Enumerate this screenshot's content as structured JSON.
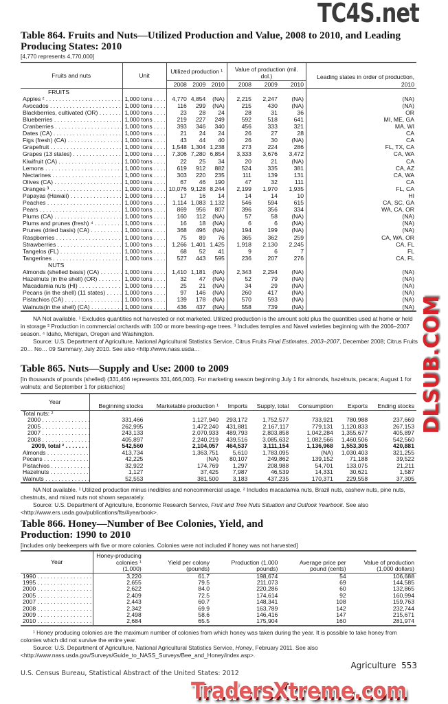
{
  "watermarks": {
    "top": "TC4S.net",
    "middle": "DLSUB.COM",
    "bottom": "TradersXtreme.com"
  },
  "t864": {
    "title": "Table 864. Fruits and Nuts—Utilized Production and Value, 2008 to 2010, and Leading Producing States: 2010",
    "headnote": "[4,770 represents 4,770,000]",
    "headers": {
      "name": "Fruits and nuts",
      "unit": "Unit",
      "prod": "Utilized production ¹",
      "value": "Value of production (mil. dol.)",
      "states": "Leading states in order of production, 2010",
      "years": [
        "2008",
        "2009",
        "2010"
      ]
    },
    "sections": [
      {
        "label": "FRUITS",
        "rows": [
          [
            "Apples ²",
            "1,000 tons",
            "4,770",
            "4,854",
            "(NA)",
            "2,215",
            "2,247",
            "(NA)",
            "(NA)"
          ],
          [
            "Avocados",
            "1,000 tons",
            "116",
            "299",
            "(NA)",
            "215",
            "430",
            "(NA)",
            "(NA)"
          ],
          [
            "Blackberries, cultivated (OR)",
            "1,000 tons",
            "23",
            "28",
            "24",
            "28",
            "31",
            "36",
            "OR"
          ],
          [
            "Blueberries",
            "1,000 tons",
            "219",
            "227",
            "249",
            "592",
            "518",
            "641",
            "MI, ME, GA"
          ],
          [
            "Cranberries",
            "1,000 tons",
            "393",
            "346",
            "340",
            "456",
            "333",
            "321",
            "MA, WI"
          ],
          [
            "Dates (CA)",
            "1,000 tons",
            "21",
            "24",
            "24",
            "26",
            "27",
            "28",
            "CA"
          ],
          [
            "Figs (fresh) (CA)",
            "1,000 tons",
            "43",
            "44",
            "40",
            "26",
            "30",
            "(NA)",
            "CA"
          ],
          [
            "Grapefruit",
            "1,000 tons",
            "1,548",
            "1,304",
            "1,238",
            "273",
            "224",
            "286",
            "FL, TX, CA"
          ],
          [
            "Grapes (13 states)",
            "1,000 tons",
            "7,306",
            "7,280",
            "6,854",
            "3,333",
            "3,676",
            "3,472",
            "CA, WA"
          ],
          [
            "Kiwifruit (CA)",
            "1,000 tons",
            "22",
            "25",
            "34",
            "20",
            "21",
            "(NA)",
            "CA"
          ],
          [
            "Lemons",
            "1,000 tons",
            "619",
            "912",
            "882",
            "524",
            "335",
            "381",
            "CA, AZ"
          ],
          [
            "Nectarines",
            "1,000 tons",
            "303",
            "220",
            "235",
            "111",
            "139",
            "131",
            "CA, WA"
          ],
          [
            "Olives (CA)",
            "1,000 tons",
            "67",
            "46",
            "190",
            "47",
            "32",
            "111",
            "CA"
          ],
          [
            "Oranges ³",
            "1,000 tons",
            "10,076",
            "9,128",
            "8,244",
            "2,199",
            "1,970",
            "1,935",
            "FL, CA"
          ],
          [
            "Papayas (Hawaii)",
            "1,000 tons",
            "17",
            "16",
            "14",
            "14",
            "14",
            "10",
            "HI"
          ],
          [
            "Peaches",
            "1,000 tons",
            "1,114",
            "1,083",
            "1,132",
            "546",
            "594",
            "615",
            "CA, SC, GA"
          ],
          [
            "Pears",
            "1,000 tons",
            "869",
            "956",
            "807",
            "396",
            "356",
            "334",
            "WA, CA, OR"
          ],
          [
            "Plums (CA)",
            "1,000 tons",
            "160",
            "112",
            "(NA)",
            "57",
            "58",
            "(NA)",
            "(NA)"
          ],
          [
            "Plums and prunes (fresh) ⁴",
            "1,000 tons",
            "16",
            "18",
            "(NA)",
            "6",
            "6",
            "(NA)",
            "(NA)"
          ],
          [
            "Prunes (dried basis) (CA)",
            "1,000 tons",
            "368",
            "496",
            "(NA)",
            "194",
            "199",
            "(NA)",
            "(NA)"
          ],
          [
            "Raspberries",
            "1,000 tons",
            "75",
            "89",
            "76",
            "365",
            "362",
            "259",
            "CA, WA, OR"
          ],
          [
            "Strawberries",
            "1,000 tons",
            "1,266",
            "1,401",
            "1,425",
            "1,918",
            "2,130",
            "2,245",
            "CA, FL"
          ],
          [
            "Tangelos (FL)",
            "1,000 tons",
            "68",
            "52",
            "41",
            "9",
            "6",
            "7",
            "FL"
          ],
          [
            "Tangerines",
            "1,000 tons",
            "527",
            "443",
            "595",
            "236",
            "207",
            "276",
            "CA, FL"
          ]
        ]
      },
      {
        "label": "NUTS",
        "rows": [
          [
            "Almonds (shelled basis) (CA)",
            "1,000 tons",
            "1,410",
            "1,181",
            "(NA)",
            "2,343",
            "2,294",
            "(NA)",
            "(NA)"
          ],
          [
            "Hazelnuts (in the shell) (OR)",
            "1,000 tons",
            "32",
            "47",
            "(NA)",
            "52",
            "79",
            "(NA)",
            "(NA)"
          ],
          [
            "Macadamia nuts (HI)",
            "1,000 tons",
            "25",
            "21",
            "(NA)",
            "34",
            "29",
            "(NA)",
            "(NA)"
          ],
          [
            "Pecans (in the shell) (11 states)",
            "1,000 tons",
            "97",
            "146",
            "(NA)",
            "260",
            "417",
            "(NA)",
            "(NA)"
          ],
          [
            "Pistachios (CA)",
            "1,000 tons",
            "139",
            "178",
            "(NA)",
            "570",
            "593",
            "(NA)",
            "(NA)"
          ],
          [
            "Walnuts(in the shell) (CA)",
            "1,000 tons",
            "436",
            "437",
            "(NA)",
            "558",
            "739",
            "(NA)",
            "(NA)"
          ]
        ]
      }
    ],
    "footnote": "NA Not available. ¹ Excludes quantities not harvested or not marketed. Utilized production is the amount sold plus the quantities used at home or held in storage ² Production in commercial orchards with 100 or more bearing-age trees. ³ Includes temples and Navel varieties beginning with the 2006–2007 season. ⁴ Idaho, Michigan, Oregon and Washington.",
    "source_a": "Source: U.S. Department of Agriculture, National Agricultural Statistics Service, Citrus Fruits ",
    "source_b": "Final Estimates, 2003–2007",
    "source_c": ", December 2008; Citrus Fruits 20… No… 09 Summary, July 2010. See also <http://www.nass.usda…"
  },
  "t865": {
    "title": "Table 865. Nuts—Supply and Use: 2000 to 2009",
    "headnote": "[In thousands of pounds (shelled) (331,466 represents 331,466,000). For marketing season beginning July 1 for almonds, hazelnuts, pecans; August 1 for walnuts; and September 1 for pistachios]",
    "headers": [
      "Year",
      "Beginning stocks",
      "Marketable production ¹",
      "Imports",
      "Supply, total",
      "Consumption",
      "Exports",
      "Ending stocks"
    ],
    "group_label": "Total nuts: ²",
    "rows": [
      [
        "2000",
        "331,466",
        "1,127,940",
        "293,172",
        "1,752,577",
        "733,921",
        "780,988",
        "237,669"
      ],
      [
        "2005",
        "262,995",
        "1,472,240",
        "431,881",
        "2,167,117",
        "779,131",
        "1,120,833",
        "267,153"
      ],
      [
        "2007",
        "243,133",
        "2,070,933",
        "489,793",
        "2,803,858",
        "1,042,284",
        "1,355,677",
        "405,897"
      ],
      [
        "2008",
        "405,897",
        "2,240,219",
        "439,516",
        "3,085,632",
        "1,082,566",
        "1,460,506",
        "542,560"
      ],
      [
        "2009, total ²",
        "542,560",
        "2,104,057",
        "464,537",
        "3,111,154",
        "1,136,968",
        "1,553,305",
        "420,881"
      ],
      [
        "Almonds",
        "413,734",
        "1,363,751",
        "5,610",
        "1,783,095",
        "(NA)",
        "1,030,403",
        "321,255"
      ],
      [
        "Pecans",
        "42,225",
        "(NA)",
        "80,107",
        "249,862",
        "139,152",
        "71,188",
        "39,522"
      ],
      [
        "Pistachios",
        "32,922",
        "174,769",
        "1,297",
        "208,988",
        "54,701",
        "133,075",
        "21,211"
      ],
      [
        "Hazelnuts",
        "1,127",
        "37,425",
        "7,987",
        "46,539",
        "14,331",
        "30,621",
        "1,587"
      ],
      [
        "Walnuts",
        "52,553",
        "381,500",
        "3,183",
        "437,235",
        "170,371",
        "229,558",
        "37,305"
      ]
    ],
    "footnote": "NA Not available. ¹ Utilized production minus inedibles and noncommercial usage. ² Includes macadamia nuts, Brazil nuts, cashew nuts, pine nuts, chestnuts, and mixed nuts not shown separately.",
    "source_a": "Source: U.S. Department of Agriculture, Economic Research Service, ",
    "source_b": "Fruit and Tree Nuts Situation and Outlook Yearbook.",
    "source_c": " See also <http://www.ers.usda.gov/publications/fts/#yearbook>."
  },
  "t866": {
    "title": "Table 866. Honey—Number of Bee Colonies, Yield, and Production: 1990 to 2010",
    "headnote": "[Includes only beekeepers with five or more colonies. Colonies were not included if honey was not harvested]",
    "headers": [
      "Year",
      "Honey-producing colonies ¹ (1,000)",
      "Yield per colony (pounds)",
      "Production (1,000 pounds)",
      "Average price per pound (cents)",
      "Value of production (1,000 dollars)"
    ],
    "rows": [
      [
        "1990",
        "3,220",
        "61.7",
        "198,674",
        "54",
        "106,688"
      ],
      [
        "1995",
        "2,655",
        "79.5",
        "211,073",
        "69",
        "144,585"
      ],
      [
        "2000",
        "2,622",
        "84.0",
        "220,286",
        "60",
        "132,865"
      ],
      [
        "2005",
        "2,409",
        "72.5",
        "174,614",
        "92",
        "160,994"
      ],
      [
        "2007",
        "2,443",
        "60.7",
        "148,341",
        "108",
        "159,763"
      ],
      [
        "2008",
        "2,342",
        "69.9",
        "163,789",
        "142",
        "232,744"
      ],
      [
        "2009",
        "2,498",
        "58.6",
        "146,416",
        "147",
        "215,671"
      ],
      [
        "2010",
        "2,684",
        "65.5",
        "175,904",
        "160",
        "281,974"
      ]
    ],
    "footnote": "¹ Honey producing colonies are the maximum number of colonies from which honey was taken during the year. It is possible to take honey from colonies which did not survive the entire year.",
    "source_a": "Source: U.S. Department of Agriculture, National Agricultural Statistics Service, ",
    "source_b": "Honey",
    "source_c": ", February 2011. See also <http://www.nass.usda.gov/Surveys/Guide_to_NASS_Surveys/Bee_and_Honey/index.asp>."
  },
  "footer": {
    "section": "Agriculture",
    "page": "553",
    "publisher": "U.S. Census Bureau, Statistical Abstract of the United States: 2012"
  }
}
